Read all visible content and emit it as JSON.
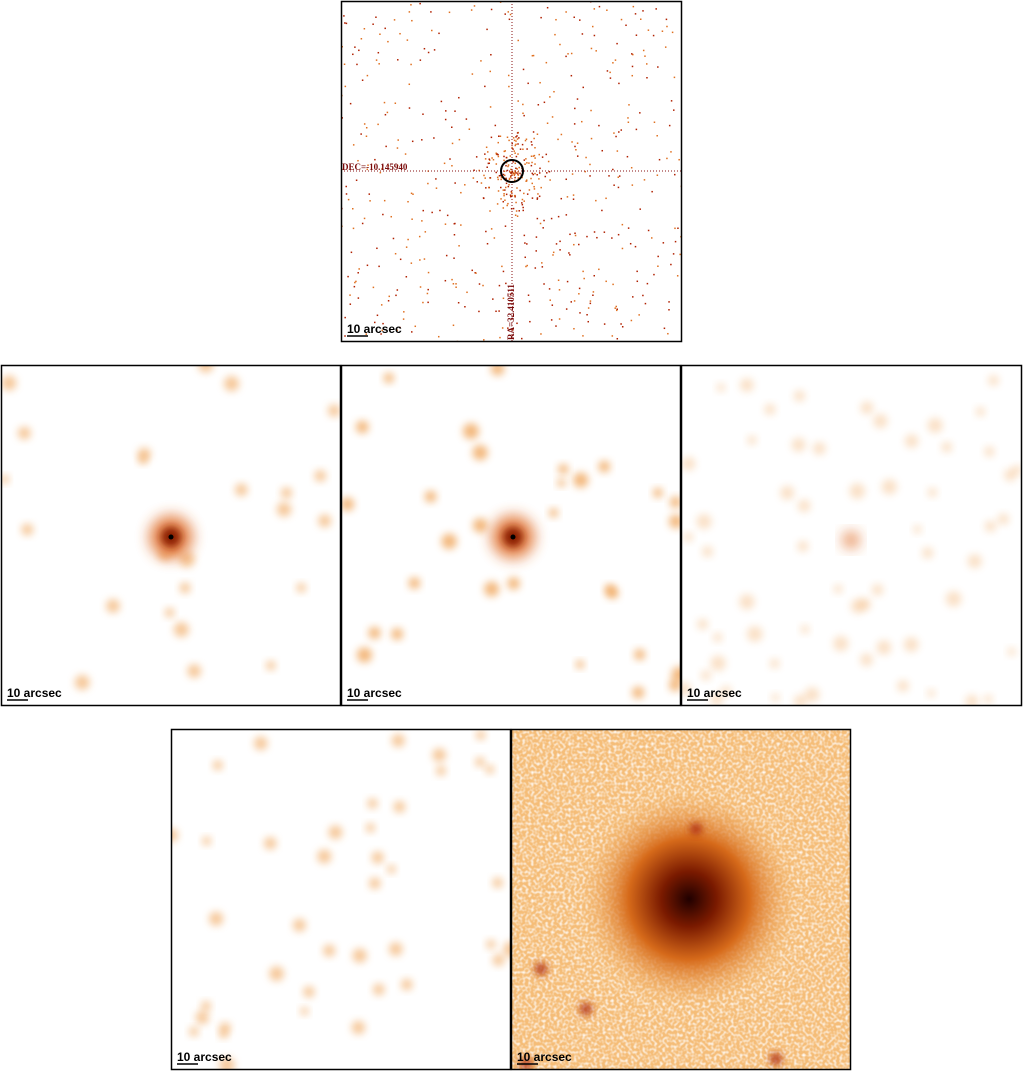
{
  "panels": [
    {
      "scale_label": "10 arcsec",
      "dec_label": "DEC=-10.145940",
      "ra_label": "RA=32.410511"
    },
    {
      "scale_label": "10 arcsec"
    },
    {
      "scale_label": "10 arcsec"
    },
    {
      "scale_label": "10 arcsec"
    },
    {
      "scale_label": "10 arcsec"
    },
    {
      "scale_label": "10 arcsec"
    }
  ]
}
